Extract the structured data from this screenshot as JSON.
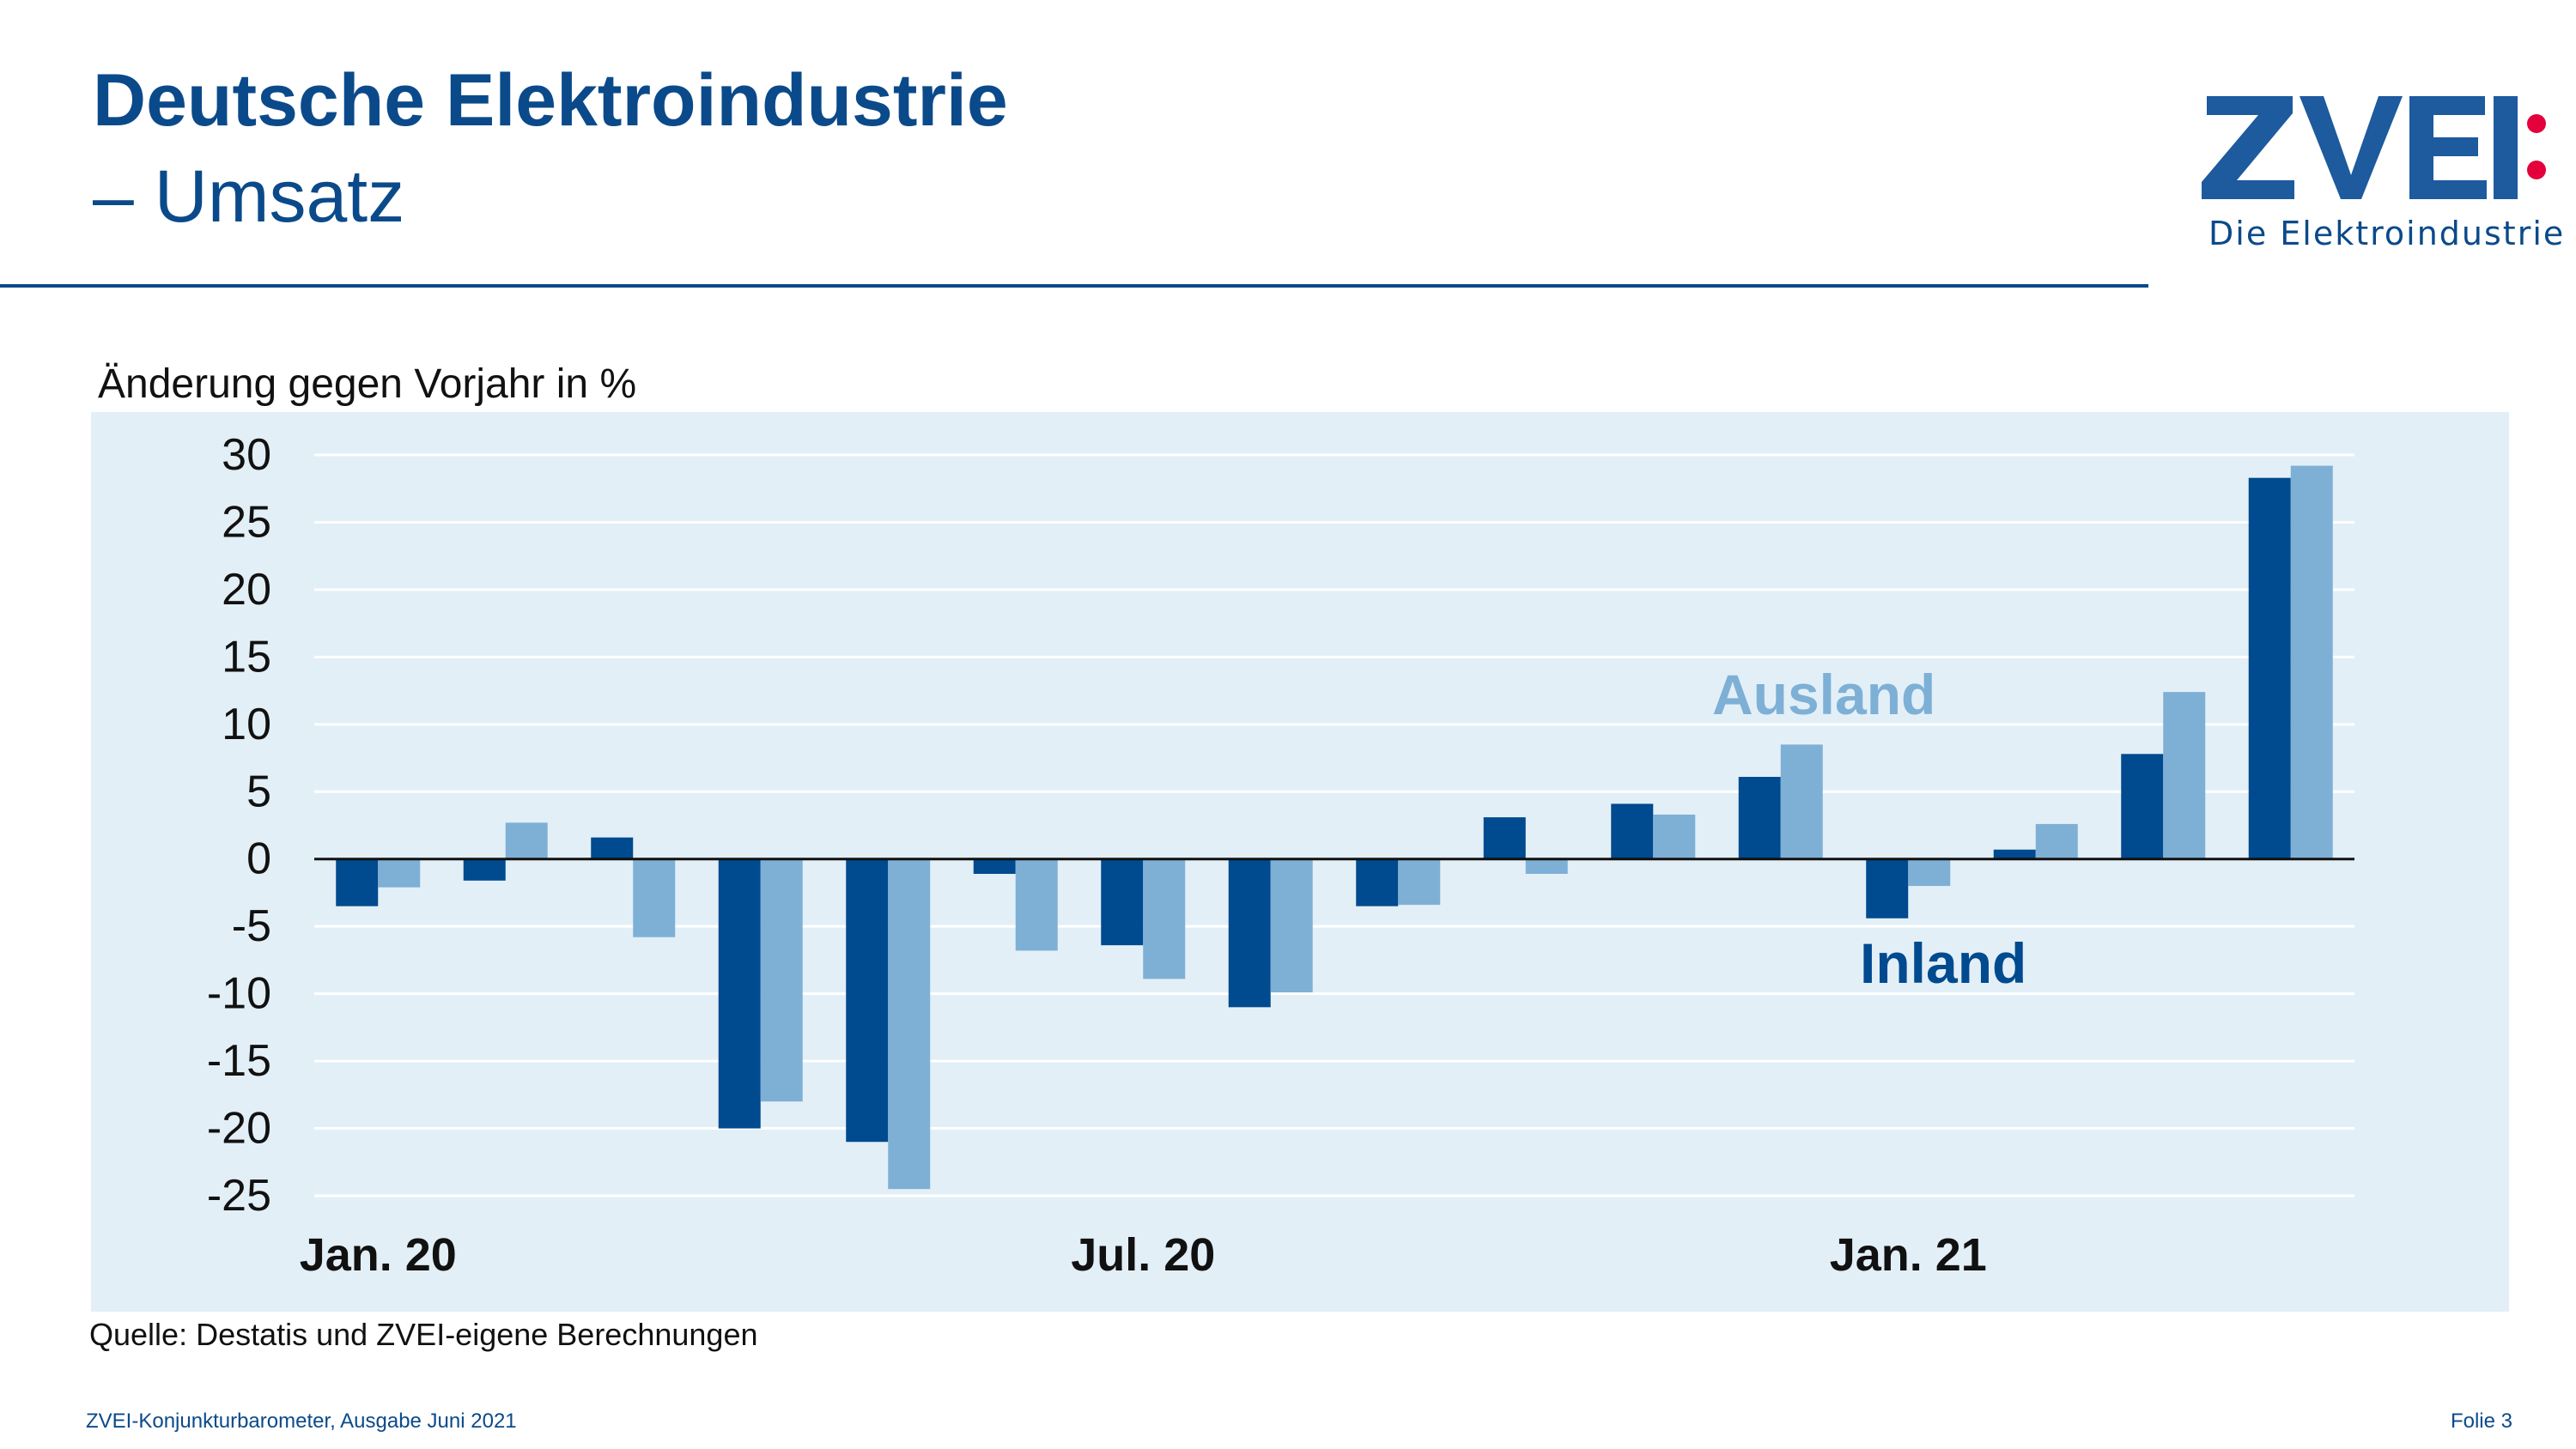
{
  "header": {
    "title": "Deutsche Elektroindustrie",
    "subtitle": "– Umsatz"
  },
  "logo": {
    "wordmark": "ZVEI",
    "tagline": "Die Elektroindustrie",
    "colors": {
      "blue": "#1d5a9e",
      "dot": "#e4003b"
    }
  },
  "source": "Quelle: Destatis und ZVEI-eigene Berechnungen",
  "footer": {
    "left": "ZVEI-Konjunkturbarometer, Ausgabe Juni 2021",
    "right": "Folie 3"
  },
  "chart_data": {
    "type": "bar",
    "ylabel": "Änderung gegen Vorjahr in %",
    "ylim": [
      -25,
      30
    ],
    "yticks": [
      30,
      25,
      20,
      15,
      10,
      5,
      0,
      -5,
      -10,
      -15,
      -20,
      -25
    ],
    "grid": true,
    "categories": [
      "Jan. 20",
      "",
      "",
      "",
      "",
      "",
      "Jul. 20",
      "",
      "",
      "",
      "",
      "",
      "Jan. 21",
      "",
      "",
      ""
    ],
    "series": [
      {
        "name": "Inland",
        "color": "#004a8f",
        "values": [
          -3.5,
          -1.6,
          1.6,
          -20,
          -21,
          -1.1,
          -6.4,
          -11,
          -3.5,
          3.1,
          4.1,
          6.1,
          -4.4,
          0.7,
          7.8,
          28.3
        ]
      },
      {
        "name": "Ausland",
        "color": "#7eb0d6",
        "values": [
          -2.1,
          2.7,
          -5.8,
          -18,
          -24.5,
          -6.8,
          -8.9,
          -9.9,
          -3.4,
          -1.1,
          3.3,
          8.5,
          -2.0,
          2.6,
          12.4,
          29.2
        ]
      }
    ],
    "annotations": [
      {
        "text": "Ausland",
        "series": "Ausland"
      },
      {
        "text": "Inland",
        "series": "Inland"
      }
    ]
  }
}
